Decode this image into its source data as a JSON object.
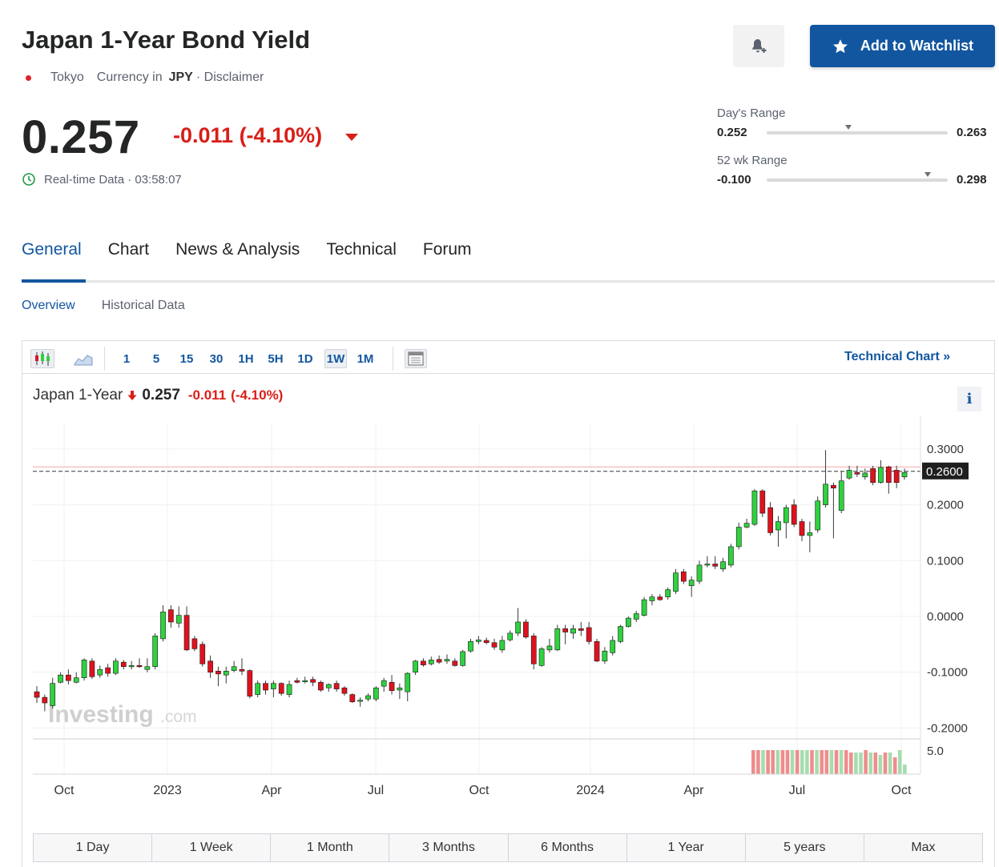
{
  "header": {
    "title": "Japan 1-Year Bond Yield",
    "exchange": "Tokyo",
    "currency_prefix": "Currency in",
    "currency": "JPY",
    "disclaimer": "· Disclaimer",
    "watchlist_label": "Add to Watchlist"
  },
  "quote": {
    "price": "0.257",
    "change": "-0.011 (-4.10%)",
    "realtime": "Real-time Data · 03:58:07"
  },
  "ranges": {
    "day_label": "Day's Range",
    "day_low": "0.252",
    "day_high": "0.263",
    "day_position": 0.45,
    "wk52_label": "52 wk Range",
    "wk52_low": "-0.100",
    "wk52_high": "0.298",
    "wk52_position": 0.89
  },
  "tabs": [
    "General",
    "Chart",
    "News & Analysis",
    "Technical",
    "Forum"
  ],
  "subtabs": [
    "Overview",
    "Historical Data"
  ],
  "toolbar": {
    "intervals": [
      "1",
      "5",
      "15",
      "30",
      "1H",
      "5H",
      "1D",
      "1W",
      "1M"
    ],
    "selected_interval": "1W",
    "technical_chart": "Technical Chart »"
  },
  "legend": {
    "name": "Japan 1-Year",
    "price": "0.257",
    "change": "-0.011",
    "percent": "(-4.10%)"
  },
  "periods": [
    "1 Day",
    "1 Week",
    "1 Month",
    "3 Months",
    "6 Months",
    "1 Year",
    "5 years",
    "Max"
  ],
  "colors": {
    "up": "#2fd13f",
    "down": "#e0111e",
    "accent": "#1256a0",
    "negative": "#d91e18"
  },
  "chart_data": {
    "type": "candlestick",
    "title": "Japan 1-Year",
    "y_ticks": [
      "0.3000",
      "0.2000",
      "0.1000",
      "0.0000",
      "-0.1000",
      "-0.2000"
    ],
    "ylim": [
      -0.2,
      0.3
    ],
    "current_marker": "0.2600",
    "current_value": 0.26,
    "reference_line": 0.268,
    "x_ticks": [
      "Oct",
      "2023",
      "Apr",
      "Jul",
      "Oct",
      "2024",
      "Apr",
      "Jul",
      "Oct"
    ],
    "volume_tick": "5.0",
    "watermark": "Investing.com",
    "candles": [
      {
        "o": -0.135,
        "c": -0.145,
        "h": -0.125,
        "l": -0.155
      },
      {
        "o": -0.145,
        "c": -0.155,
        "h": -0.14,
        "l": -0.17
      },
      {
        "o": -0.16,
        "c": -0.12,
        "h": -0.11,
        "l": -0.165
      },
      {
        "o": -0.118,
        "c": -0.105,
        "h": -0.1,
        "l": -0.12
      },
      {
        "o": -0.105,
        "c": -0.115,
        "h": -0.095,
        "l": -0.122
      },
      {
        "o": -0.118,
        "c": -0.11,
        "h": -0.1,
        "l": -0.12
      },
      {
        "o": -0.11,
        "c": -0.078,
        "h": -0.075,
        "l": -0.115
      },
      {
        "o": -0.08,
        "c": -0.108,
        "h": -0.075,
        "l": -0.112
      },
      {
        "o": -0.105,
        "c": -0.095,
        "h": -0.088,
        "l": -0.11
      },
      {
        "o": -0.092,
        "c": -0.102,
        "h": -0.085,
        "l": -0.108
      },
      {
        "o": -0.102,
        "c": -0.08,
        "h": -0.075,
        "l": -0.105
      },
      {
        "o": -0.082,
        "c": -0.09,
        "h": -0.078,
        "l": -0.095
      },
      {
        "o": -0.09,
        "c": -0.088,
        "h": -0.08,
        "l": -0.095
      },
      {
        "o": -0.088,
        "c": -0.09,
        "h": -0.075,
        "l": -0.092
      },
      {
        "o": -0.095,
        "c": -0.09,
        "h": -0.075,
        "l": -0.1
      },
      {
        "o": -0.09,
        "c": -0.035,
        "h": -0.03,
        "l": -0.095
      },
      {
        "o": -0.04,
        "c": 0.008,
        "h": 0.02,
        "l": -0.045
      },
      {
        "o": 0.012,
        "c": -0.01,
        "h": 0.02,
        "l": -0.02
      },
      {
        "o": -0.012,
        "c": 0.002,
        "h": 0.018,
        "l": -0.02
      },
      {
        "o": 0.002,
        "c": -0.06,
        "h": 0.018,
        "l": -0.062
      },
      {
        "o": -0.04,
        "c": -0.058,
        "h": -0.035,
        "l": -0.062
      },
      {
        "o": -0.05,
        "c": -0.085,
        "h": -0.045,
        "l": -0.09
      },
      {
        "o": -0.08,
        "c": -0.1,
        "h": -0.07,
        "l": -0.11
      },
      {
        "o": -0.098,
        "c": -0.103,
        "h": -0.09,
        "l": -0.125
      },
      {
        "o": -0.105,
        "c": -0.098,
        "h": -0.09,
        "l": -0.12
      },
      {
        "o": -0.097,
        "c": -0.09,
        "h": -0.08,
        "l": -0.1
      },
      {
        "o": -0.095,
        "c": -0.098,
        "h": -0.075,
        "l": -0.105
      },
      {
        "o": -0.097,
        "c": -0.143,
        "h": -0.095,
        "l": -0.147
      },
      {
        "o": -0.14,
        "c": -0.12,
        "h": -0.115,
        "l": -0.145
      },
      {
        "o": -0.12,
        "c": -0.132,
        "h": -0.115,
        "l": -0.14
      },
      {
        "o": -0.13,
        "c": -0.12,
        "h": -0.115,
        "l": -0.145
      },
      {
        "o": -0.12,
        "c": -0.138,
        "h": -0.118,
        "l": -0.142
      },
      {
        "o": -0.14,
        "c": -0.122,
        "h": -0.115,
        "l": -0.145
      },
      {
        "o": -0.115,
        "c": -0.118,
        "h": -0.11,
        "l": -0.12
      },
      {
        "o": -0.117,
        "c": -0.115,
        "h": -0.108,
        "l": -0.12
      },
      {
        "o": -0.113,
        "c": -0.118,
        "h": -0.108,
        "l": -0.125
      },
      {
        "o": -0.118,
        "c": -0.132,
        "h": -0.115,
        "l": -0.135
      },
      {
        "o": -0.128,
        "c": -0.122,
        "h": -0.12,
        "l": -0.135
      },
      {
        "o": -0.12,
        "c": -0.13,
        "h": -0.115,
        "l": -0.135
      },
      {
        "o": -0.128,
        "c": -0.138,
        "h": -0.125,
        "l": -0.142
      },
      {
        "o": -0.14,
        "c": -0.153,
        "h": -0.138,
        "l": -0.155
      },
      {
        "o": -0.152,
        "c": -0.15,
        "h": -0.145,
        "l": -0.162
      },
      {
        "o": -0.148,
        "c": -0.142,
        "h": -0.138,
        "l": -0.152
      },
      {
        "o": -0.148,
        "c": -0.128,
        "h": -0.125,
        "l": -0.152
      },
      {
        "o": -0.125,
        "c": -0.115,
        "h": -0.11,
        "l": -0.135
      },
      {
        "o": -0.118,
        "c": -0.133,
        "h": -0.105,
        "l": -0.14
      },
      {
        "o": -0.132,
        "c": -0.128,
        "h": -0.12,
        "l": -0.148
      },
      {
        "o": -0.135,
        "c": -0.102,
        "h": -0.1,
        "l": -0.152
      },
      {
        "o": -0.1,
        "c": -0.08,
        "h": -0.078,
        "l": -0.105
      },
      {
        "o": -0.08,
        "c": -0.087,
        "h": -0.075,
        "l": -0.09
      },
      {
        "o": -0.085,
        "c": -0.078,
        "h": -0.072,
        "l": -0.088
      },
      {
        "o": -0.077,
        "c": -0.082,
        "h": -0.07,
        "l": -0.085
      },
      {
        "o": -0.08,
        "c": -0.077,
        "h": -0.068,
        "l": -0.085
      },
      {
        "o": -0.08,
        "c": -0.088,
        "h": -0.075,
        "l": -0.09
      },
      {
        "o": -0.088,
        "c": -0.063,
        "h": -0.06,
        "l": -0.09
      },
      {
        "o": -0.062,
        "c": -0.045,
        "h": -0.04,
        "l": -0.065
      },
      {
        "o": -0.045,
        "c": -0.042,
        "h": -0.035,
        "l": -0.05
      },
      {
        "o": -0.043,
        "c": -0.047,
        "h": -0.038,
        "l": -0.05
      },
      {
        "o": -0.047,
        "c": -0.055,
        "h": -0.04,
        "l": -0.06
      },
      {
        "o": -0.06,
        "c": -0.043,
        "h": -0.035,
        "l": -0.065
      },
      {
        "o": -0.042,
        "c": -0.03,
        "h": -0.025,
        "l": -0.045
      },
      {
        "o": -0.03,
        "c": -0.01,
        "h": 0.015,
        "l": -0.035
      },
      {
        "o": -0.01,
        "c": -0.037,
        "h": -0.005,
        "l": -0.04
      },
      {
        "o": -0.035,
        "c": -0.085,
        "h": -0.03,
        "l": -0.095
      },
      {
        "o": -0.088,
        "c": -0.058,
        "h": -0.055,
        "l": -0.09
      },
      {
        "o": -0.06,
        "c": -0.053,
        "h": -0.04,
        "l": -0.065
      },
      {
        "o": -0.06,
        "c": -0.022,
        "h": -0.015,
        "l": -0.062
      },
      {
        "o": -0.022,
        "c": -0.028,
        "h": -0.015,
        "l": -0.05
      },
      {
        "o": -0.03,
        "c": -0.022,
        "h": -0.015,
        "l": -0.04
      },
      {
        "o": -0.022,
        "c": -0.025,
        "h": -0.01,
        "l": -0.035
      },
      {
        "o": -0.02,
        "c": -0.045,
        "h": -0.01,
        "l": -0.05
      },
      {
        "o": -0.045,
        "c": -0.08,
        "h": -0.04,
        "l": -0.082
      },
      {
        "o": -0.08,
        "c": -0.062,
        "h": -0.055,
        "l": -0.085
      },
      {
        "o": -0.065,
        "c": -0.043,
        "h": -0.035,
        "l": -0.07
      },
      {
        "o": -0.045,
        "c": -0.018,
        "h": -0.015,
        "l": -0.048
      },
      {
        "o": -0.018,
        "c": -0.003,
        "h": 0.0,
        "l": -0.02
      },
      {
        "o": -0.005,
        "c": 0.005,
        "h": 0.01,
        "l": -0.01
      },
      {
        "o": 0.002,
        "c": 0.03,
        "h": 0.035,
        "l": 0.0
      },
      {
        "o": 0.028,
        "c": 0.035,
        "h": 0.04,
        "l": 0.02
      },
      {
        "o": 0.035,
        "c": 0.03,
        "h": 0.04,
        "l": 0.028
      },
      {
        "o": 0.035,
        "c": 0.048,
        "h": 0.052,
        "l": 0.03
      },
      {
        "o": 0.045,
        "c": 0.078,
        "h": 0.085,
        "l": 0.04
      },
      {
        "o": 0.08,
        "c": 0.063,
        "h": 0.085,
        "l": 0.058
      },
      {
        "o": 0.055,
        "c": 0.065,
        "h": 0.072,
        "l": 0.035
      },
      {
        "o": 0.063,
        "c": 0.092,
        "h": 0.1,
        "l": 0.058
      },
      {
        "o": 0.092,
        "c": 0.094,
        "h": 0.108,
        "l": 0.088
      },
      {
        "o": 0.094,
        "c": 0.09,
        "h": 0.108,
        "l": 0.085
      },
      {
        "o": 0.085,
        "c": 0.098,
        "h": 0.105,
        "l": 0.08
      },
      {
        "o": 0.092,
        "c": 0.125,
        "h": 0.13,
        "l": 0.088
      },
      {
        "o": 0.125,
        "c": 0.16,
        "h": 0.168,
        "l": 0.12
      },
      {
        "o": 0.16,
        "c": 0.167,
        "h": 0.175,
        "l": 0.158
      },
      {
        "o": 0.165,
        "c": 0.225,
        "h": 0.228,
        "l": 0.162
      },
      {
        "o": 0.225,
        "c": 0.185,
        "h": 0.228,
        "l": 0.178
      },
      {
        "o": 0.195,
        "c": 0.15,
        "h": 0.205,
        "l": 0.145
      },
      {
        "o": 0.155,
        "c": 0.17,
        "h": 0.18,
        "l": 0.125
      },
      {
        "o": 0.168,
        "c": 0.195,
        "h": 0.2,
        "l": 0.14
      },
      {
        "o": 0.2,
        "c": 0.165,
        "h": 0.21,
        "l": 0.16
      },
      {
        "o": 0.17,
        "c": 0.145,
        "h": 0.175,
        "l": 0.135
      },
      {
        "o": 0.145,
        "c": 0.15,
        "h": 0.17,
        "l": 0.115
      },
      {
        "o": 0.155,
        "c": 0.207,
        "h": 0.215,
        "l": 0.15
      },
      {
        "o": 0.2,
        "c": 0.237,
        "h": 0.298,
        "l": 0.195
      },
      {
        "o": 0.235,
        "c": 0.23,
        "h": 0.24,
        "l": 0.14
      },
      {
        "o": 0.19,
        "c": 0.243,
        "h": 0.26,
        "l": 0.185
      },
      {
        "o": 0.248,
        "c": 0.262,
        "h": 0.27,
        "l": 0.245
      },
      {
        "o": 0.258,
        "c": 0.255,
        "h": 0.27,
        "l": 0.25
      },
      {
        "o": 0.25,
        "c": 0.257,
        "h": 0.265,
        "l": 0.245
      },
      {
        "o": 0.265,
        "c": 0.24,
        "h": 0.27,
        "l": 0.235
      },
      {
        "o": 0.24,
        "c": 0.267,
        "h": 0.28,
        "l": 0.238
      },
      {
        "o": 0.268,
        "c": 0.24,
        "h": 0.27,
        "l": 0.22
      },
      {
        "o": 0.262,
        "c": 0.24,
        "h": 0.27,
        "l": 0.23
      },
      {
        "o": 0.25,
        "c": 0.258,
        "h": 0.265,
        "l": 0.245
      }
    ],
    "volume": [
      {
        "v": 1.0,
        "d": "down"
      },
      {
        "v": 1.0,
        "d": "down"
      },
      {
        "v": 1.0,
        "d": "up"
      },
      {
        "v": 1.0,
        "d": "down"
      },
      {
        "v": 1.0,
        "d": "down"
      },
      {
        "v": 1.0,
        "d": "up"
      },
      {
        "v": 1.0,
        "d": "down"
      },
      {
        "v": 1.0,
        "d": "down"
      },
      {
        "v": 1.0,
        "d": "up"
      },
      {
        "v": 1.0,
        "d": "down"
      },
      {
        "v": 1.0,
        "d": "up"
      },
      {
        "v": 1.0,
        "d": "up"
      },
      {
        "v": 1.0,
        "d": "down"
      },
      {
        "v": 1.0,
        "d": "up"
      },
      {
        "v": 1.0,
        "d": "down"
      },
      {
        "v": 1.0,
        "d": "down"
      },
      {
        "v": 1.0,
        "d": "up"
      },
      {
        "v": 1.0,
        "d": "down"
      },
      {
        "v": 1.0,
        "d": "up"
      },
      {
        "v": 1.0,
        "d": "down"
      },
      {
        "v": 0.9,
        "d": "down"
      },
      {
        "v": 0.9,
        "d": "up"
      },
      {
        "v": 0.9,
        "d": "up"
      },
      {
        "v": 1.0,
        "d": "down"
      },
      {
        "v": 0.9,
        "d": "up"
      },
      {
        "v": 0.9,
        "d": "down"
      },
      {
        "v": 0.8,
        "d": "up"
      },
      {
        "v": 0.9,
        "d": "down"
      },
      {
        "v": 0.9,
        "d": "up"
      },
      {
        "v": 0.7,
        "d": "down"
      },
      {
        "v": 1.0,
        "d": "up"
      },
      {
        "v": 0.4,
        "d": "up"
      }
    ]
  }
}
